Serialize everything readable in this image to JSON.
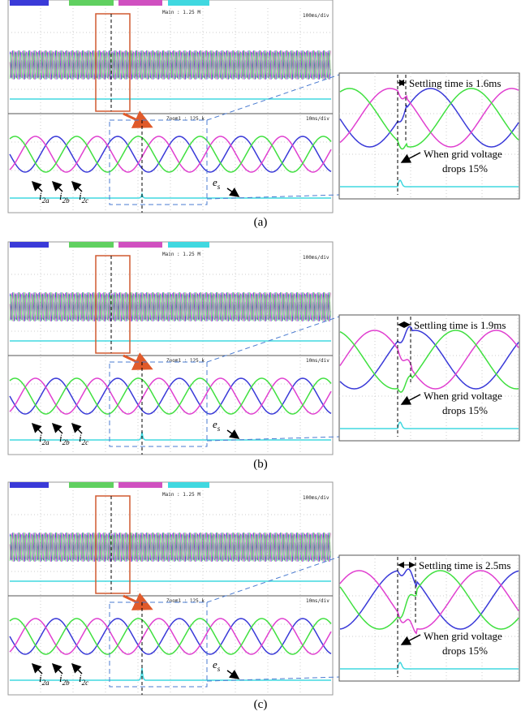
{
  "panels": [
    {
      "caption": "(a)",
      "main": "Main : 1.25 M",
      "main_scale": "100ms/div",
      "zoom": "Zoom1 : 125 k",
      "zoom_scale": "10ms/div",
      "currents": [
        {
          "base": "i",
          "sub": "2a"
        },
        {
          "base": "i",
          "sub": "2b"
        },
        {
          "base": "i",
          "sub": "2c"
        }
      ],
      "voltage": {
        "base": "e",
        "sub": "s"
      },
      "settling": "Settling time is 1.6ms",
      "note": [
        "When grid voltage",
        "drops 15%"
      ]
    },
    {
      "caption": "(b)",
      "main": "Main : 1.25 M",
      "main_scale": "100ms/div",
      "zoom": "Zoom1 : 125 k",
      "zoom_scale": "10ms/div",
      "currents": [
        {
          "base": "i",
          "sub": "2a"
        },
        {
          "base": "i",
          "sub": "2b"
        },
        {
          "base": "i",
          "sub": "2c"
        }
      ],
      "voltage": {
        "base": "e",
        "sub": "s"
      },
      "settling": "Settling time is 1.9ms",
      "note": [
        "When grid voltage",
        "drops 15%"
      ]
    },
    {
      "caption": "(c)",
      "main": "Main : 1.25 M",
      "main_scale": "100ms/div",
      "zoom": "Zoom1 : 125 k",
      "zoom_scale": "10ms/div",
      "currents": [
        {
          "base": "i",
          "sub": "2a"
        },
        {
          "base": "i",
          "sub": "2b"
        },
        {
          "base": "i",
          "sub": "2c"
        }
      ],
      "voltage": {
        "base": "e",
        "sub": "s"
      },
      "settling": "Settling time is 2.5ms",
      "note": [
        "When grid voltage",
        "drops 15%"
      ]
    }
  ]
}
